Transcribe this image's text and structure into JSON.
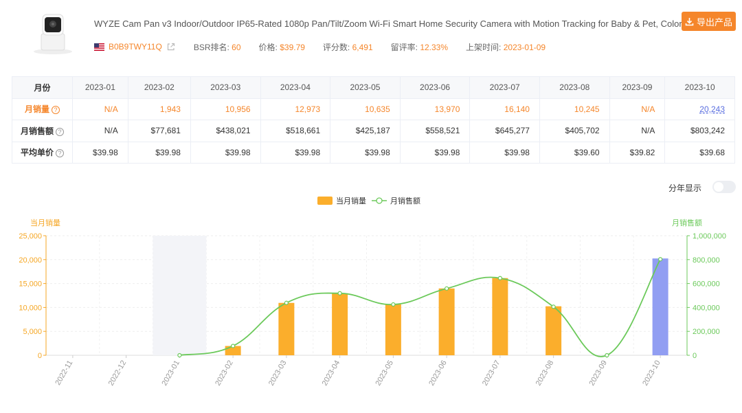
{
  "product": {
    "title": "WYZE Cam Pan v3 Indoor/Outdoor IP65-Rated 1080p Pan/Tilt/Zoom Wi-Fi Smart Home Security Camera with Motion Tracking for Baby & Pet, Color ...",
    "asin": "B0B9TWY11Q",
    "bsr_label": "BSR排名:",
    "bsr_value": "60",
    "price_label": "价格:",
    "price_value": "$39.79",
    "reviews_label": "评分数:",
    "reviews_value": "6,491",
    "review_rate_label": "留评率:",
    "review_rate_value": "12.33%",
    "launch_label": "上架时间:",
    "launch_value": "2023-01-09",
    "export_label": "导出产品",
    "flag_icon": "us-flag-icon",
    "export_icon": "download-icon"
  },
  "table": {
    "header_label": "月份",
    "months": [
      "2023-01",
      "2023-02",
      "2023-03",
      "2023-04",
      "2023-05",
      "2023-06",
      "2023-07",
      "2023-08",
      "2023-09",
      "2023-10"
    ],
    "rows": [
      {
        "label": "月销量",
        "values": [
          "N/A",
          "1,943",
          "10,956",
          "12,973",
          "10,635",
          "13,970",
          "16,140",
          "10,245",
          "N/A",
          "20,243"
        ]
      },
      {
        "label": "月销售额",
        "values": [
          "N/A",
          "$77,681",
          "$438,021",
          "$518,661",
          "$425,187",
          "$558,521",
          "$645,277",
          "$405,702",
          "N/A",
          "$803,242"
        ]
      },
      {
        "label": "平均单价",
        "values": [
          "$39.98",
          "$39.98",
          "$39.98",
          "$39.98",
          "$39.98",
          "$39.98",
          "$39.98",
          "$39.60",
          "$39.82",
          "$39.68"
        ]
      }
    ],
    "help_glyph": "?"
  },
  "toggle": {
    "label": "分年显示",
    "on": false
  },
  "colors": {
    "accent": "#f5862b",
    "bar": "#fbae2c",
    "bar_highlight": "#919ef2",
    "line": "#6bc95a",
    "link": "#5b6fe0"
  },
  "chart_data": {
    "type": "bar",
    "categories": [
      "2022-11",
      "2022-12",
      "2023-01",
      "2023-02",
      "2023-03",
      "2023-04",
      "2023-05",
      "2023-06",
      "2023-07",
      "2023-08",
      "2023-09",
      "2023-10"
    ],
    "legend": [
      "当月销量",
      "月销售额"
    ],
    "left_axis_title": "当月销量",
    "right_axis_title": "月销售额",
    "left_ticks": [
      "0",
      "5,000",
      "10,000",
      "15,000",
      "20,000",
      "25,000"
    ],
    "right_ticks": [
      "0",
      "200,000",
      "400,000",
      "600,000",
      "800,000",
      "1,000,000"
    ],
    "ylim_left": [
      0,
      25000
    ],
    "ylim_right": [
      0,
      1000000
    ],
    "series": [
      {
        "name": "当月销量",
        "type": "bar",
        "values": [
          null,
          null,
          0,
          1943,
          10956,
          12973,
          10635,
          13970,
          16140,
          10245,
          0,
          20243
        ]
      },
      {
        "name": "月销售额",
        "type": "line",
        "values": [
          null,
          null,
          0,
          77681,
          438021,
          518661,
          425187,
          558521,
          645277,
          405702,
          0,
          803242
        ]
      }
    ],
    "highlight_band_category": "2023-01",
    "highlight_bar_category": "2023-10",
    "legend_position": "top-center",
    "grid": true
  }
}
